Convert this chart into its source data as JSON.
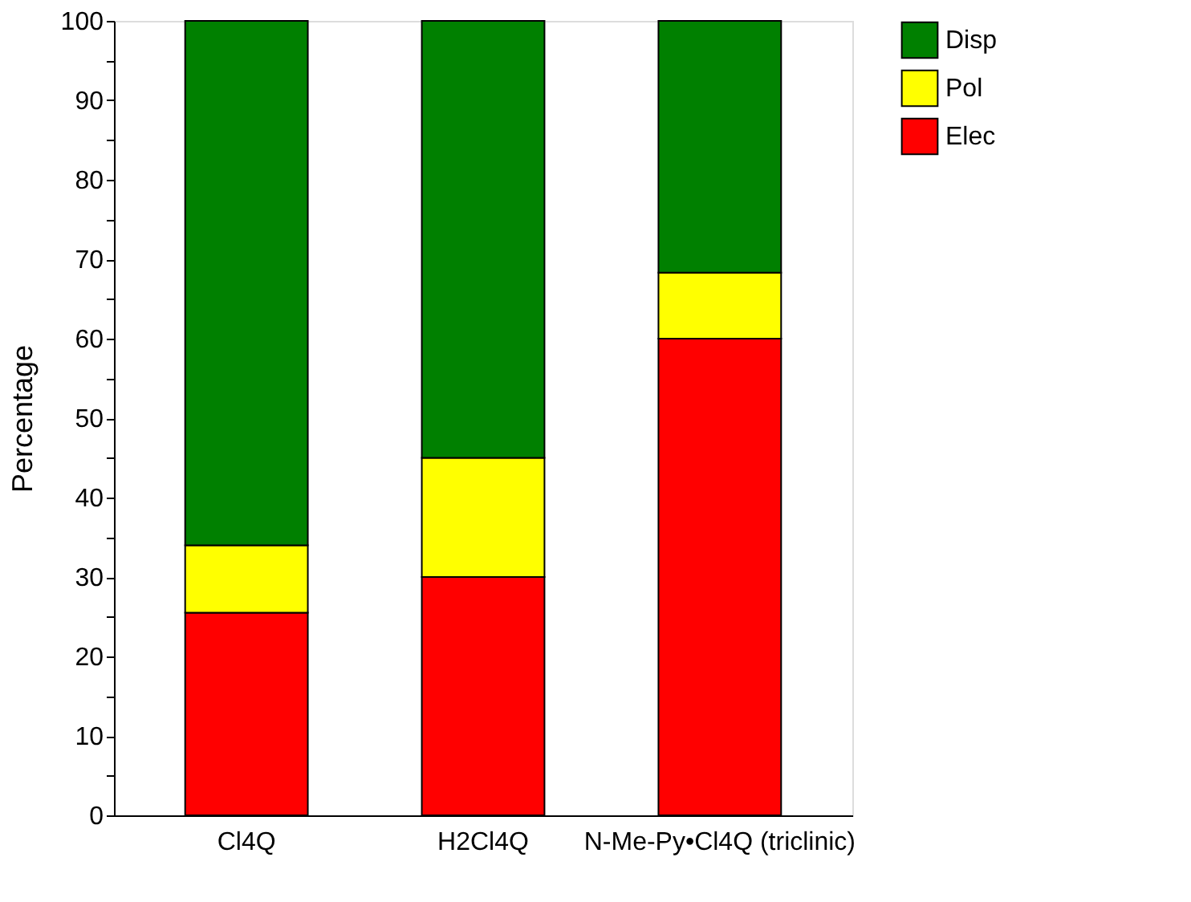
{
  "chart_data": {
    "type": "bar",
    "stacked": true,
    "ylabel": "Percentage",
    "categories": [
      "Cl4Q",
      "H2Cl4Q",
      "N-Me-Py•Cl4Q (triclinic)"
    ],
    "series": [
      {
        "name": "Elec",
        "color": "#ff0000",
        "values": [
          25.5,
          30,
          60
        ]
      },
      {
        "name": "Pol",
        "color": "#ffff00",
        "values": [
          8.5,
          15,
          8.3
        ]
      },
      {
        "name": "Disp",
        "color": "#008000",
        "values": [
          66,
          55,
          31.7
        ]
      }
    ],
    "ylim": [
      0,
      100
    ],
    "yticks": [
      0,
      {
        "value": 5,
        "label": null
      },
      10,
      {
        "value": 15,
        "label": null
      },
      20,
      {
        "value": 25,
        "label": null
      },
      30,
      {
        "value": 35,
        "label": null
      },
      40,
      {
        "value": 45,
        "label": null
      },
      50,
      {
        "value": 55,
        "label": null
      },
      60,
      {
        "value": 65,
        "label": null
      },
      70,
      {
        "value": 75,
        "label": null
      },
      80,
      {
        "value": 85,
        "label": null
      },
      90,
      {
        "value": 95,
        "label": null
      },
      100
    ],
    "legend": "right",
    "grid": false
  }
}
